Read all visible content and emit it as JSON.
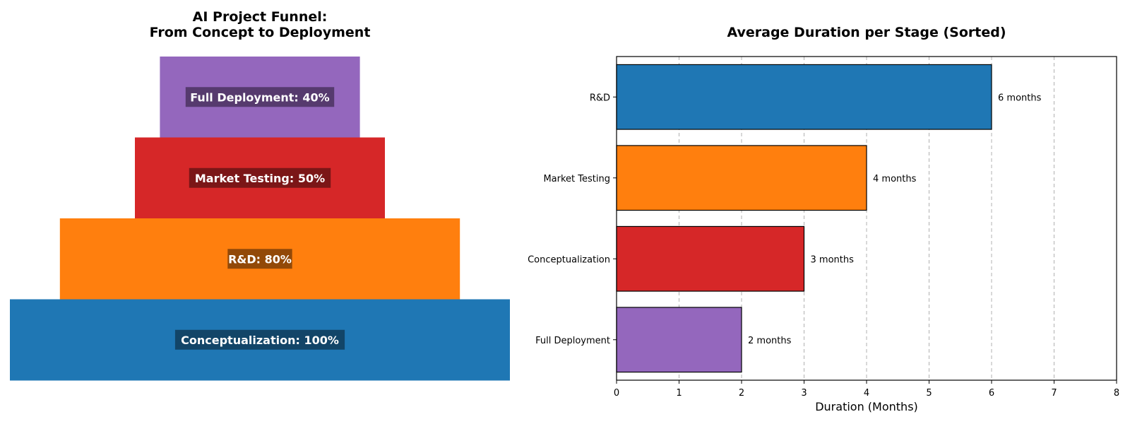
{
  "chart_data": [
    {
      "type": "bar",
      "orientation": "funnel",
      "title_lines": [
        "AI Project Funnel:",
        "From Concept to Deployment"
      ],
      "stages": [
        {
          "label": "Full Deployment: 40%",
          "stage": "Full Deployment",
          "percent": 40,
          "color": "#9467bd",
          "label_bg": "#4b3360"
        },
        {
          "label": "Market Testing: 50%",
          "stage": "Market Testing",
          "percent": 50,
          "color": "#d62728",
          "label_bg": "#6b1414"
        },
        {
          "label": "R&D: 80%",
          "stage": "R&D",
          "percent": 80,
          "color": "#ff7f0e",
          "label_bg": "#7f4007"
        },
        {
          "label": "Conceptualization: 100%",
          "stage": "Conceptualization",
          "percent": 100,
          "color": "#1f77b4",
          "label_bg": "#103c5a"
        }
      ]
    },
    {
      "type": "bar",
      "orientation": "horizontal",
      "title": "Average Duration per Stage (Sorted)",
      "xlabel": "Duration (Months)",
      "ylabel": "",
      "xlim": [
        0,
        8
      ],
      "xticks": [
        "0",
        "1",
        "2",
        "3",
        "4",
        "5",
        "6",
        "7",
        "8"
      ],
      "grid": "x, dashed",
      "categories": [
        "R&D",
        "Market Testing",
        "Conceptualization",
        "Full Deployment"
      ],
      "values": [
        6,
        4,
        3,
        2
      ],
      "value_labels": [
        "6 months",
        "4 months",
        "3 months",
        "2 months"
      ],
      "colors": [
        "#1f77b4",
        "#ff7f0e",
        "#d62728",
        "#9467bd"
      ]
    }
  ]
}
